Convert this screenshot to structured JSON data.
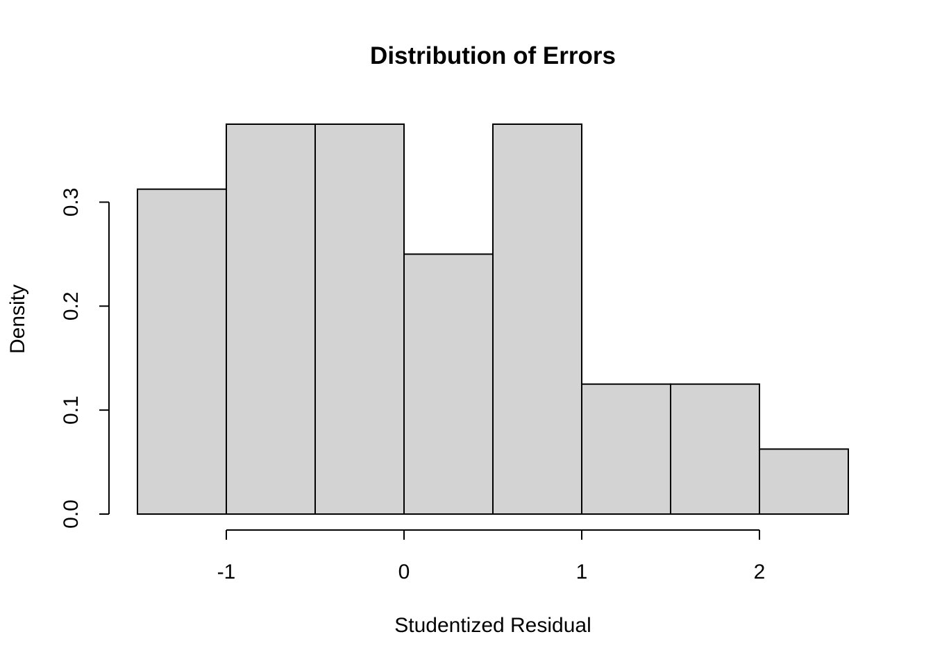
{
  "chart_data": {
    "type": "bar",
    "title": "Distribution of Errors",
    "xlabel": "Studentized Residual",
    "ylabel": "Density",
    "bins": [
      {
        "x0": -1.5,
        "x1": -1.0,
        "density": 0.3125
      },
      {
        "x0": -1.0,
        "x1": -0.5,
        "density": 0.375
      },
      {
        "x0": -0.5,
        "x1": 0.0,
        "density": 0.375
      },
      {
        "x0": 0.0,
        "x1": 0.5,
        "density": 0.25
      },
      {
        "x0": 0.5,
        "x1": 1.0,
        "density": 0.375
      },
      {
        "x0": 1.0,
        "x1": 1.5,
        "density": 0.125
      },
      {
        "x0": 1.5,
        "x1": 2.0,
        "density": 0.125
      },
      {
        "x0": 2.0,
        "x1": 2.5,
        "density": 0.0625
      }
    ],
    "xlim": [
      -1.5,
      2.5
    ],
    "ylim": [
      0,
      0.375
    ],
    "x_ticks": [
      -1,
      0,
      1,
      2
    ],
    "x_tick_labels": [
      "-1",
      "0",
      "1",
      "2"
    ],
    "y_ticks": [
      0,
      0.1,
      0.2,
      0.3
    ],
    "y_tick_labels": [
      "0.0",
      "0.1",
      "0.2",
      "0.3"
    ],
    "bar_fill": "#d3d3d3",
    "grid": false,
    "legend": "none"
  }
}
